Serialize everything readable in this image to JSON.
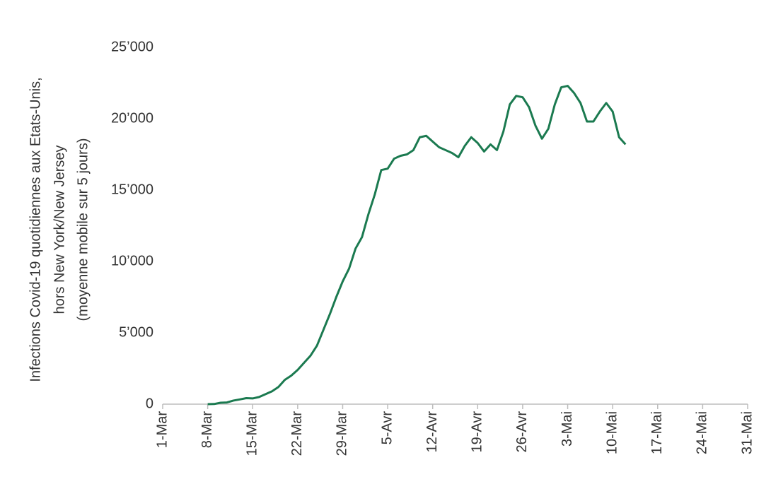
{
  "chart_data": {
    "type": "line",
    "ylabel": [
      "Infections Covid-19 quotidiennes aux Etats-Unis,",
      "hors New York/New Jersey",
      "(moyenne mobile sur 5 jours)"
    ],
    "categories": [
      "1-Mar",
      null,
      null,
      null,
      null,
      null,
      null,
      "8-Mar",
      null,
      null,
      null,
      null,
      null,
      null,
      "15-Mar",
      null,
      null,
      null,
      null,
      null,
      null,
      "22-Mar",
      null,
      null,
      null,
      null,
      null,
      null,
      "29-Mar",
      null,
      null,
      null,
      null,
      null,
      null,
      "5-Avr",
      null,
      null,
      null,
      null,
      null,
      null,
      "12-Avr",
      null,
      null,
      null,
      null,
      null,
      null,
      "19-Avr",
      null,
      null,
      null,
      null,
      null,
      null,
      "26-Avr",
      null,
      null,
      null,
      null,
      null,
      null,
      "3-Mai",
      null,
      null,
      null,
      null,
      null,
      null,
      "10-Mai",
      null,
      null,
      null,
      null,
      null,
      null,
      "17-Mai",
      null,
      null,
      null,
      null,
      null,
      null,
      "24-Mai",
      null,
      null,
      null,
      null,
      null,
      null,
      "31-Mai"
    ],
    "series": [
      {
        "name": "Infections",
        "color": "#1b7a50",
        "values": [
          null,
          null,
          null,
          null,
          null,
          null,
          null,
          0,
          10,
          100,
          120,
          250,
          330,
          420,
          400,
          500,
          700,
          900,
          1200,
          1700,
          2000,
          2400,
          2900,
          3400,
          4100,
          5200,
          6300,
          7500,
          8600,
          9500,
          10900,
          11700,
          13300,
          14700,
          16400,
          16500,
          17200,
          17400,
          17500,
          17800,
          18700,
          18800,
          18400,
          18000,
          17800,
          17600,
          17300,
          18100,
          18700,
          18300,
          17700,
          18200,
          17800,
          19100,
          21000,
          21600,
          21500,
          20800,
          19500,
          18600,
          19300,
          21000,
          22200,
          22300,
          21800,
          21100,
          19800,
          19800,
          20500,
          21100,
          20500,
          18700,
          18200,
          null,
          null,
          null,
          null,
          null,
          null,
          null,
          null,
          null,
          null,
          null,
          null,
          null,
          null,
          null,
          null,
          null,
          null,
          null
        ]
      }
    ],
    "ylim": [
      0,
      25000
    ],
    "yticks": [
      0,
      {
        "value": 5000,
        "label": "5’000"
      },
      {
        "value": 10000,
        "label": "10’000"
      },
      {
        "value": 15000,
        "label": "15’000"
      },
      {
        "value": 20000,
        "label": "20’000"
      },
      {
        "value": 25000,
        "label": "25’000"
      }
    ],
    "grid": false
  }
}
